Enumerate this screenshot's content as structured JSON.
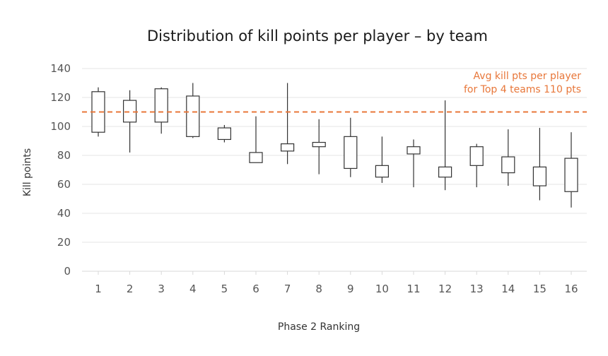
{
  "chart_data": {
    "type": "box",
    "title": "Distribution of kill points per player – by team",
    "xlabel": "Phase 2 Ranking",
    "ylabel": "Kill points",
    "ylim": [
      0,
      140
    ],
    "yticks": [
      0,
      20,
      40,
      60,
      80,
      100,
      120,
      140
    ],
    "grid": true,
    "categories": [
      "1",
      "2",
      "3",
      "4",
      "5",
      "6",
      "7",
      "8",
      "9",
      "10",
      "11",
      "12",
      "13",
      "14",
      "15",
      "16"
    ],
    "boxes": [
      {
        "min": 93,
        "q1": 96,
        "q3": 124,
        "max": 127
      },
      {
        "min": 82,
        "q1": 103,
        "q3": 118,
        "max": 125
      },
      {
        "min": 95,
        "q1": 103,
        "q3": 126,
        "max": 127
      },
      {
        "min": 92,
        "q1": 93,
        "q3": 121,
        "max": 130
      },
      {
        "min": 89,
        "q1": 91,
        "q3": 99,
        "max": 101
      },
      {
        "min": 75,
        "q1": 75,
        "q3": 82,
        "max": 107
      },
      {
        "min": 74,
        "q1": 83,
        "q3": 88,
        "max": 130
      },
      {
        "min": 67,
        "q1": 86,
        "q3": 89,
        "max": 105
      },
      {
        "min": 65,
        "q1": 71,
        "q3": 93,
        "max": 106
      },
      {
        "min": 61,
        "q1": 65,
        "q3": 73,
        "max": 93
      },
      {
        "min": 58,
        "q1": 81,
        "q3": 86,
        "max": 91
      },
      {
        "min": 56,
        "q1": 65,
        "q3": 72,
        "max": 118
      },
      {
        "min": 58,
        "q1": 73,
        "q3": 86,
        "max": 88
      },
      {
        "min": 59,
        "q1": 68,
        "q3": 79,
        "max": 98
      },
      {
        "min": 49,
        "q1": 59,
        "q3": 72,
        "max": 99
      },
      {
        "min": 44,
        "q1": 55,
        "q3": 78,
        "max": 96
      }
    ],
    "reference_line": {
      "value": 110,
      "label_line1": "Avg kill pts per player",
      "label_line2": "for Top 4 teams  110 pts",
      "color": "#e8773a"
    }
  }
}
